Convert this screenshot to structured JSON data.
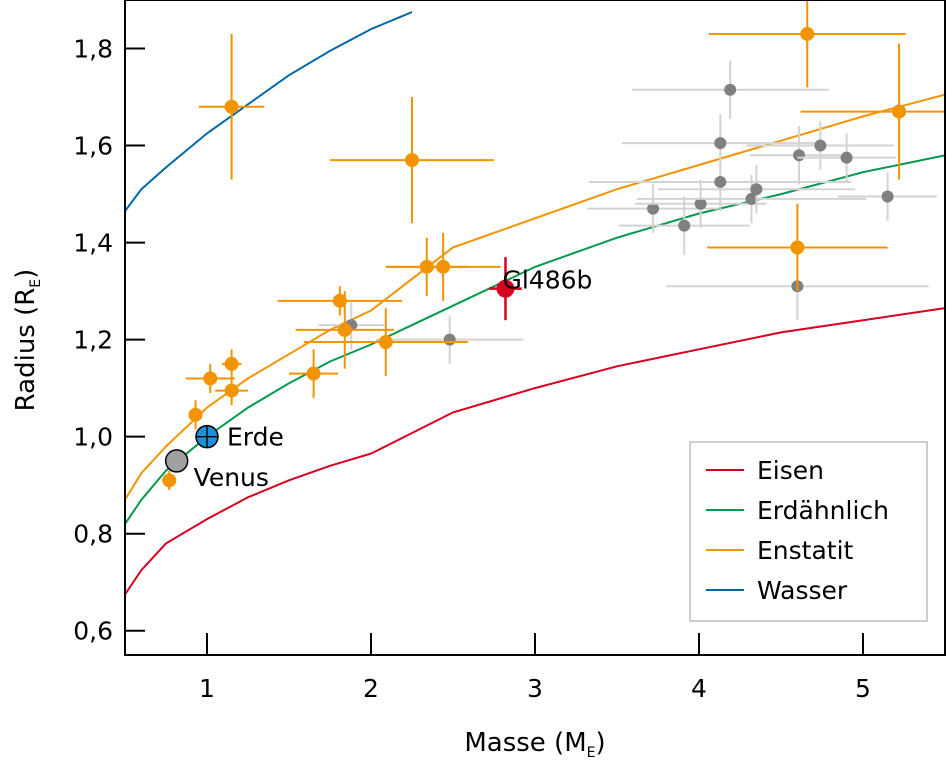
{
  "chart_data": {
    "type": "scatter",
    "xlabel": {
      "main": "Masse (M",
      "sub": "E",
      "close": ")"
    },
    "ylabel": {
      "main": "Radius (R",
      "sub": "E",
      "close": ")"
    },
    "xlim": [
      0.5,
      5.5
    ],
    "ylim": [
      0.55,
      1.9
    ],
    "xticks": [
      {
        "value": 1,
        "label": "1"
      },
      {
        "value": 2,
        "label": "2"
      },
      {
        "value": 3,
        "label": "3"
      },
      {
        "value": 4,
        "label": "4"
      },
      {
        "value": 5,
        "label": "5"
      }
    ],
    "yticks": [
      {
        "value": 0.6,
        "label": "0,6"
      },
      {
        "value": 0.8,
        "label": "0,8"
      },
      {
        "value": 1.0,
        "label": "1,0"
      },
      {
        "value": 1.2,
        "label": "1,2"
      },
      {
        "value": 1.4,
        "label": "1,4"
      },
      {
        "value": 1.6,
        "label": "1,6"
      },
      {
        "value": 1.8,
        "label": "1,8"
      }
    ],
    "grid": false,
    "legend_position": "bottom-right",
    "curves": [
      {
        "name": "Eisen",
        "color": "#d7001e",
        "x": [
          0.5,
          0.6,
          0.75,
          1.0,
          1.25,
          1.5,
          1.75,
          2.0,
          2.5,
          3.0,
          3.5,
          4.0,
          4.5,
          5.0,
          5.5
        ],
        "y": [
          0.675,
          0.725,
          0.78,
          0.83,
          0.875,
          0.91,
          0.94,
          0.965,
          1.05,
          1.1,
          1.145,
          1.18,
          1.215,
          1.24,
          1.265
        ]
      },
      {
        "name": "Erdähnlich",
        "color": "#009a4e",
        "x": [
          0.5,
          0.6,
          0.75,
          1.0,
          1.25,
          1.5,
          1.75,
          2.0,
          2.5,
          3.0,
          3.5,
          4.0,
          4.5,
          5.0,
          5.5
        ],
        "y": [
          0.82,
          0.87,
          0.93,
          1.0,
          1.06,
          1.11,
          1.155,
          1.19,
          1.27,
          1.35,
          1.41,
          1.46,
          1.5,
          1.545,
          1.58
        ]
      },
      {
        "name": "Enstatit",
        "color": "#f29400",
        "x": [
          0.5,
          0.6,
          0.75,
          1.0,
          1.25,
          1.5,
          1.75,
          2.0,
          2.5,
          3.0,
          3.5,
          4.0,
          4.5,
          5.0,
          5.5
        ],
        "y": [
          0.87,
          0.925,
          0.98,
          1.06,
          1.12,
          1.17,
          1.22,
          1.26,
          1.39,
          1.45,
          1.51,
          1.56,
          1.61,
          1.66,
          1.705
        ]
      },
      {
        "name": "Wasser",
        "color": "#0068a8",
        "x": [
          0.5,
          0.6,
          0.75,
          1.0,
          1.25,
          1.5,
          1.75,
          2.0,
          2.25
        ],
        "y": [
          1.465,
          1.51,
          1.555,
          1.625,
          1.685,
          1.745,
          1.795,
          1.84,
          1.875
        ]
      }
    ],
    "series": [
      {
        "role": "background",
        "color": "#808080",
        "errcolor": "#d3d3d3",
        "points": [
          {
            "x": 1.88,
            "y": 1.23,
            "xerr": 0.2,
            "yerr": 0.05
          },
          {
            "x": 2.48,
            "y": 1.2,
            "xerr": 0.45,
            "yerr": 0.05
          },
          {
            "x": 3.72,
            "y": 1.47,
            "xerr": 0.4,
            "yerr": 0.05
          },
          {
            "x": 3.91,
            "y": 1.435,
            "xerr": 0.4,
            "yerr": 0.06
          },
          {
            "x": 4.01,
            "y": 1.48,
            "xerr": 0.4,
            "yerr": 0.05
          },
          {
            "x": 4.13,
            "y": 1.605,
            "xerr": 0.6,
            "yerr": 0.06
          },
          {
            "x": 4.13,
            "y": 1.525,
            "xerr": 0.8,
            "yerr": 0.06
          },
          {
            "x": 4.19,
            "y": 1.715,
            "xerr": 0.6,
            "yerr": 0.06
          },
          {
            "x": 4.32,
            "y": 1.49,
            "xerr": 0.7,
            "yerr": 0.05
          },
          {
            "x": 4.35,
            "y": 1.51,
            "xerr": 0.6,
            "yerr": 0.05
          },
          {
            "x": 4.61,
            "y": 1.58,
            "xerr": 0.3,
            "yerr": 0.06
          },
          {
            "x": 4.74,
            "y": 1.6,
            "xerr": 0.45,
            "yerr": 0.05
          },
          {
            "x": 4.9,
            "y": 1.575,
            "xerr": 0.3,
            "yerr": 0.05
          },
          {
            "x": 5.15,
            "y": 1.495,
            "xerr": 0.3,
            "yerr": 0.05
          },
          {
            "x": 4.6,
            "y": 1.31,
            "xerr": 0.8,
            "yerr": 0.07
          }
        ]
      },
      {
        "role": "highlight",
        "color": "#f29400",
        "errcolor": "#f29400",
        "points": [
          {
            "x": 1.15,
            "y": 1.68,
            "xerr": 0.2,
            "yerr": 0.15
          },
          {
            "x": 2.25,
            "y": 1.57,
            "xerr": 0.5,
            "yerr": 0.13
          },
          {
            "x": 4.66,
            "y": 1.83,
            "xerr": 0.6,
            "yerr": 0.11
          },
          {
            "x": 5.22,
            "y": 1.67,
            "xerr": 0.6,
            "yerr": 0.14
          },
          {
            "x": 4.6,
            "y": 1.39,
            "xerr": 0.55,
            "yerr": 0.09
          },
          {
            "x": 2.34,
            "y": 1.35,
            "xerr": 0.25,
            "yerr": 0.06
          },
          {
            "x": 2.44,
            "y": 1.35,
            "xerr": 0.35,
            "yerr": 0.07
          },
          {
            "x": 1.81,
            "y": 1.28,
            "xerr": 0.38,
            "yerr": 0.03
          },
          {
            "x": 1.84,
            "y": 1.22,
            "xerr": 0.3,
            "yerr": 0.08
          },
          {
            "x": 2.09,
            "y": 1.195,
            "xerr": 0.5,
            "yerr": 0.07
          },
          {
            "x": 1.65,
            "y": 1.13,
            "xerr": 0.15,
            "yerr": 0.05
          },
          {
            "x": 1.02,
            "y": 1.12,
            "xerr": 0.15,
            "yerr": 0.03
          },
          {
            "x": 1.15,
            "y": 1.15,
            "xerr": 0.06,
            "yerr": 0.03
          },
          {
            "x": 1.15,
            "y": 1.095,
            "xerr": 0.1,
            "yerr": 0.03
          },
          {
            "x": 0.93,
            "y": 1.045,
            "xerr": 0.04,
            "yerr": 0.03
          },
          {
            "x": 0.77,
            "y": 0.91,
            "xerr": 0.04,
            "yerr": 0.02
          }
        ]
      }
    ],
    "named_points": [
      {
        "name": "Erde",
        "x": 1.0,
        "y": 1.0,
        "color": "#1e90d8",
        "label": "Erde",
        "cross": true
      },
      {
        "name": "Venus",
        "x": 0.815,
        "y": 0.95,
        "color": "#a0a0a0",
        "label": "Venus",
        "cross": false
      },
      {
        "name": "Gl486b",
        "x": 2.82,
        "y": 1.305,
        "xerr": 0.1,
        "yerr": 0.065,
        "color": "#d7001e",
        "label": "Gl486b",
        "cross": false
      }
    ],
    "legend": [
      {
        "label": "Eisen",
        "color": "#d7001e"
      },
      {
        "label": "Erdähnlich",
        "color": "#009a4e"
      },
      {
        "label": "Enstatit",
        "color": "#f29400"
      },
      {
        "label": "Wasser",
        "color": "#0068a8"
      }
    ]
  }
}
